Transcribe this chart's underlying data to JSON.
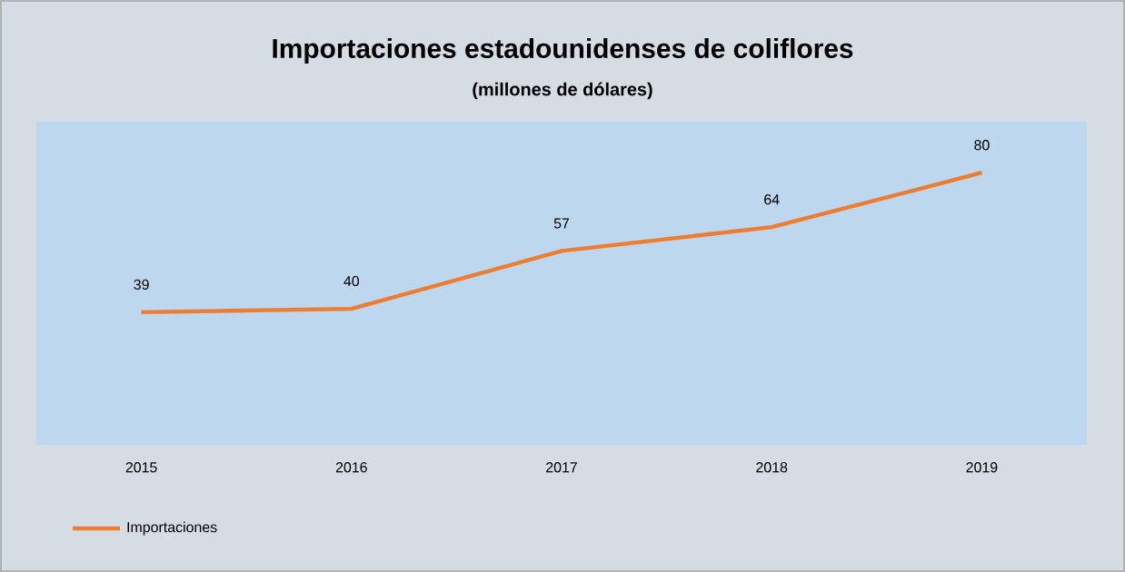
{
  "chart_data": {
    "type": "line",
    "title": "Importaciones estadounidenses de coliflores",
    "subtitle": "(millones de dólares)",
    "categories": [
      "2015",
      "2016",
      "2017",
      "2018",
      "2019"
    ],
    "series": [
      {
        "name": "Importaciones",
        "color": "#ed7d31",
        "values": [
          39,
          40,
          57,
          64,
          80
        ]
      }
    ],
    "ylim": [
      0,
      95
    ],
    "tick_labels": "x",
    "data_labels": true,
    "legend": "bottom",
    "grid": false,
    "marker": "none",
    "line_style": "solid"
  }
}
